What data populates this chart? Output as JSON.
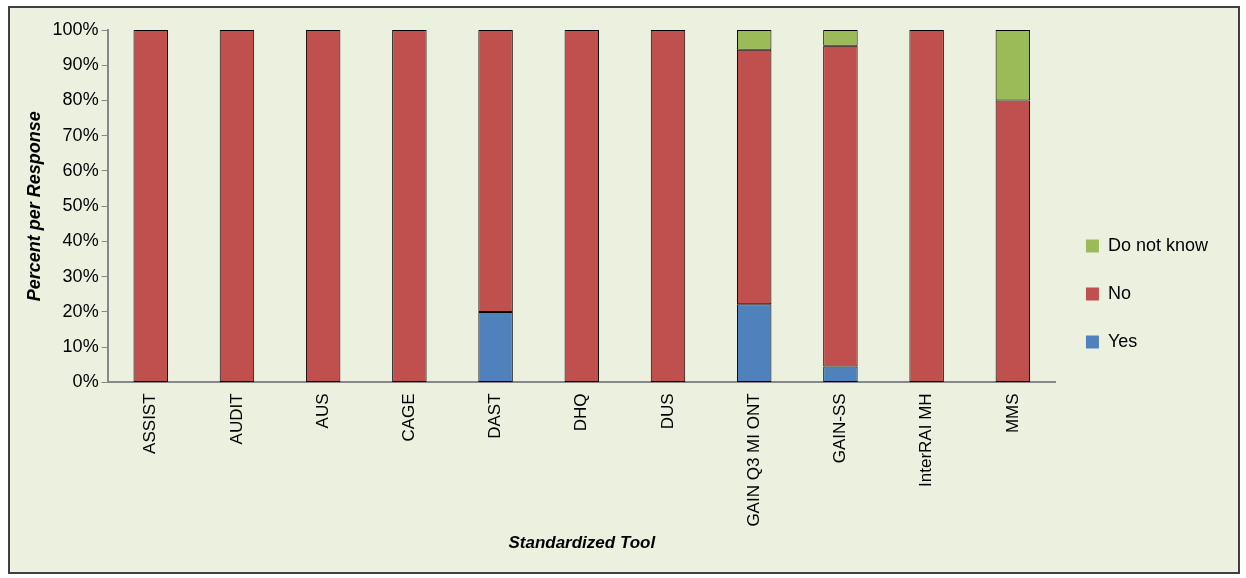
{
  "chart_data": {
    "type": "bar",
    "stacked": true,
    "xlabel": "Standardized Tool",
    "ylabel": "Percent per Response",
    "categories": [
      "ASSIST",
      "AUDIT",
      "AUS",
      "CAGE",
      "DAST",
      "DHQ",
      "DUS",
      "GAIN Q3 MI ONT",
      "GAIN-SS",
      "InterRAI MH",
      "MMS"
    ],
    "series": [
      {
        "name": "Yes",
        "color": "#4f81bd",
        "values": [
          0,
          0,
          0,
          0,
          20,
          0,
          0,
          22.2,
          4.5,
          0,
          0
        ]
      },
      {
        "name": "No",
        "color": "#c0504d",
        "values": [
          100,
          100,
          100,
          100,
          80,
          100,
          100,
          72.2,
          91,
          100,
          80
        ]
      },
      {
        "name": "Do not know",
        "color": "#9bbb59",
        "values": [
          0,
          0,
          0,
          0,
          0,
          0,
          0,
          5.6,
          4.5,
          0,
          20
        ]
      }
    ],
    "ylim": [
      0,
      100
    ],
    "yticks": [
      {
        "value": 0,
        "label": "0%"
      },
      {
        "value": 10,
        "label": "10%"
      },
      {
        "value": 20,
        "label": "20%"
      },
      {
        "value": 30,
        "label": "30%"
      },
      {
        "value": 40,
        "label": "40%"
      },
      {
        "value": 50,
        "label": "50%"
      },
      {
        "value": 60,
        "label": "60%"
      },
      {
        "value": 70,
        "label": "70%"
      },
      {
        "value": 80,
        "label": "80%"
      },
      {
        "value": 90,
        "label": "90%"
      },
      {
        "value": 100,
        "label": "100%"
      }
    ],
    "grid": false,
    "legend": "right"
  }
}
